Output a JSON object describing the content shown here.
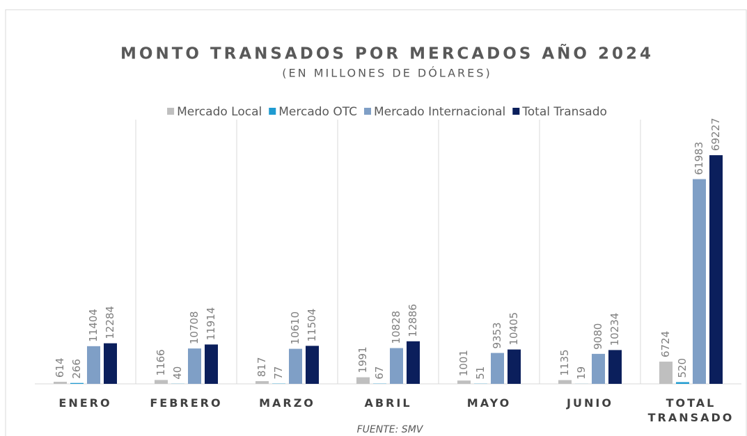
{
  "chart_data": {
    "type": "bar",
    "title": "MONTO TRANSADOS POR MERCADOS AÑO 2024",
    "subtitle": "(EN MILLONES DE DÓLARES)",
    "source": "FUENTE: SMV",
    "categories": [
      "ENERO",
      "FEBRERO",
      "MARZO",
      "ABRIL",
      "MAYO",
      "JUNIO",
      "TOTAL TRANSADO"
    ],
    "series": [
      {
        "name": "Mercado Local",
        "color": "#bfbfbf",
        "values": [
          614,
          1166,
          817,
          1991,
          1001,
          1135,
          6724
        ]
      },
      {
        "name": "Mercado OTC",
        "color": "#1f9bd1",
        "values": [
          266,
          40,
          77,
          67,
          51,
          19,
          520
        ]
      },
      {
        "name": "Mercado Internacional",
        "color": "#7f9fc6",
        "values": [
          11404,
          10708,
          10610,
          10828,
          9353,
          9080,
          61983
        ]
      },
      {
        "name": "Total Transado",
        "color": "#0b1f5c",
        "values": [
          12284,
          11914,
          11504,
          12886,
          10405,
          10234,
          69227
        ]
      }
    ],
    "ylim": [
      0,
      80000
    ],
    "legend": "top"
  }
}
